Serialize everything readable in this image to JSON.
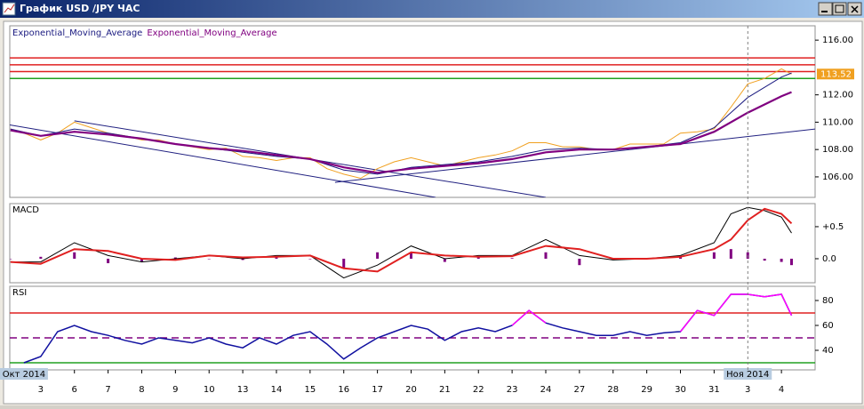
{
  "window_title": "График USD /JPY ЧАС",
  "chart_data": [
    {
      "type": "line",
      "ylim": [
        104.5,
        117.05
      ],
      "yticks": [
        {
          "value": 106,
          "label": "106.00"
        },
        {
          "value": 108,
          "label": "108.00"
        },
        {
          "value": 110,
          "label": "110.00"
        },
        {
          "value": 112,
          "label": "112.00"
        },
        {
          "value": 116,
          "label": "116.00"
        }
      ],
      "series": [
        {
          "color": "#f0a020",
          "width": 1,
          "x": [
            -0.9,
            -0.5,
            0,
            0.5,
            1,
            1.5,
            2,
            2.5,
            3,
            3.5,
            4,
            4.5,
            5,
            5.5,
            6,
            6.5,
            7,
            7.5,
            8,
            8.5,
            9,
            9.5,
            10,
            10.5,
            11,
            11.5,
            12,
            12.5,
            13,
            13.5,
            14,
            14.5,
            15,
            15.5,
            16,
            16.5,
            17,
            17.5,
            18,
            18.5,
            19,
            19.5,
            20,
            20.5,
            21,
            21.5,
            22,
            22.3
          ],
          "values": [
            109.5,
            109.2,
            108.7,
            109.2,
            110.0,
            109.6,
            109.2,
            109.0,
            108.7,
            108.7,
            108.4,
            108.2,
            108.0,
            108.1,
            107.5,
            107.4,
            107.2,
            107.4,
            107.4,
            106.6,
            106.2,
            105.9,
            106.6,
            107.1,
            107.4,
            107.1,
            106.8,
            107.1,
            107.4,
            107.6,
            107.9,
            108.5,
            108.5,
            108.2,
            108.2,
            108.0,
            108.0,
            108.4,
            108.4,
            108.4,
            109.2,
            109.3,
            109.5,
            111.1,
            112.8,
            113.2,
            113.9,
            113.52
          ]
        },
        {
          "name": "Exponential_Moving_Average",
          "color": "#1a1a80",
          "width": 1,
          "x": [
            -0.9,
            0,
            1,
            2,
            3,
            4,
            5,
            6,
            7,
            8,
            9,
            10,
            11,
            12,
            13,
            14,
            15,
            16,
            17,
            18,
            19,
            20,
            21,
            22,
            22.3
          ],
          "values": [
            109.5,
            109.0,
            109.5,
            109.2,
            108.8,
            108.4,
            108.1,
            107.8,
            107.5,
            107.3,
            106.5,
            106.2,
            106.7,
            106.9,
            107.1,
            107.5,
            108.0,
            108.1,
            108.0,
            108.2,
            108.5,
            109.6,
            111.8,
            113.3,
            113.6
          ]
        },
        {
          "name": "Exponential_Moving_Average",
          "color": "#800080",
          "width": 2.2,
          "x": [
            -0.9,
            0,
            1,
            2,
            3,
            4,
            5,
            6,
            7,
            8,
            9,
            10,
            11,
            12,
            13,
            14,
            15,
            16,
            17,
            18,
            19,
            20,
            21,
            22,
            22.3
          ],
          "values": [
            109.4,
            109.0,
            109.3,
            109.1,
            108.8,
            108.4,
            108.1,
            107.9,
            107.6,
            107.3,
            106.7,
            106.3,
            106.6,
            106.8,
            107.0,
            107.3,
            107.8,
            108.0,
            108.0,
            108.2,
            108.4,
            109.3,
            110.7,
            111.9,
            112.2
          ]
        }
      ],
      "hlines": [
        {
          "value": 114.7,
          "color": "#e02020"
        },
        {
          "value": 114.2,
          "color": "#e02020"
        },
        {
          "value": 113.7,
          "color": "#e02020"
        },
        {
          "value": 113.2,
          "color": "#20a020"
        }
      ],
      "trendlines": [
        {
          "x1": 1,
          "y1": 110.1,
          "x2": 15,
          "y2": 104.5
        },
        {
          "x1": -0.92,
          "y1": 109.8,
          "x2": 11.73,
          "y2": 104.5
        },
        {
          "x1": 8.74,
          "y1": 105.6,
          "x2": 23.0,
          "y2": 109.5
        }
      ],
      "trendline_color": "#202080",
      "last_price": 113.52,
      "last_price_color": "#f0a020"
    },
    {
      "type": "macd",
      "title": "MACD",
      "ylim": [
        -0.375,
        0.86
      ],
      "yticks": [
        {
          "value": 0,
          "label": "0.0"
        },
        {
          "value": 0.5,
          "label": "+0.5"
        }
      ],
      "x": [
        -0.9,
        0,
        1,
        2,
        3,
        4,
        5,
        6,
        7,
        8,
        9,
        10,
        11,
        12,
        13,
        14,
        15,
        16,
        17,
        18,
        19,
        20,
        20.5,
        21,
        21.5,
        22,
        22.3
      ],
      "series": [
        {
          "color": "#000000",
          "width": 1,
          "values": [
            -0.05,
            -0.05,
            0.25,
            0.05,
            -0.05,
            0.0,
            0.05,
            0.0,
            0.05,
            0.05,
            -0.3,
            -0.1,
            0.2,
            0.0,
            0.05,
            0.05,
            0.3,
            0.05,
            -0.02,
            0.0,
            0.05,
            0.25,
            0.7,
            0.8,
            0.75,
            0.65,
            0.4
          ]
        },
        {
          "color": "#e02020",
          "width": 2,
          "values": [
            -0.05,
            -0.08,
            0.15,
            0.12,
            0.0,
            -0.02,
            0.05,
            0.02,
            0.03,
            0.05,
            -0.15,
            -0.2,
            0.1,
            0.05,
            0.03,
            0.04,
            0.2,
            0.15,
            0.0,
            0.0,
            0.03,
            0.15,
            0.3,
            0.6,
            0.78,
            0.7,
            0.55
          ]
        }
      ],
      "histogram": {
        "color": "#800080",
        "values": [
          0,
          0.03,
          0.1,
          -0.07,
          -0.05,
          0.02,
          0,
          -0.02,
          0.02,
          0,
          -0.15,
          0.1,
          0.1,
          -0.05,
          0.02,
          0.01,
          0.1,
          -0.1,
          -0.02,
          0,
          0.02,
          0.1,
          0.15,
          0.1,
          -0.03,
          -0.05,
          -0.1
        ]
      }
    },
    {
      "type": "rsi",
      "title": "RSI",
      "ylim": [
        24.3,
        91.4
      ],
      "yticks": [
        40,
        60,
        80
      ],
      "xlim": [
        -0.92,
        23.0
      ],
      "xticks": [
        {
          "value": 0,
          "label": "3"
        },
        {
          "value": 1,
          "label": "6"
        },
        {
          "value": 2,
          "label": "7"
        },
        {
          "value": 3,
          "label": "8"
        },
        {
          "value": 4,
          "label": "9"
        },
        {
          "value": 5,
          "label": "10"
        },
        {
          "value": 6,
          "label": "13"
        },
        {
          "value": 7,
          "label": "14"
        },
        {
          "value": 8,
          "label": "15"
        },
        {
          "value": 9,
          "label": "16"
        },
        {
          "value": 10,
          "label": "17"
        },
        {
          "value": 11,
          "label": "20"
        },
        {
          "value": 12,
          "label": "21"
        },
        {
          "value": 13,
          "label": "22"
        },
        {
          "value": 14,
          "label": "23"
        },
        {
          "value": 15,
          "label": "24"
        },
        {
          "value": 16,
          "label": "27"
        },
        {
          "value": 17,
          "label": "28"
        },
        {
          "value": 18,
          "label": "29"
        },
        {
          "value": 19,
          "label": "30"
        },
        {
          "value": 20,
          "label": "31"
        },
        {
          "value": 21,
          "label": "3"
        },
        {
          "value": 22,
          "label": "4"
        }
      ],
      "month_labels": [
        {
          "value": -0.5,
          "label": "Окт 2014"
        },
        {
          "value": 21,
          "label": "Ноя 2014"
        }
      ],
      "x": [
        -0.5,
        0,
        0.5,
        1,
        1.5,
        2,
        2.5,
        3,
        3.5,
        4,
        4.5,
        5,
        5.5,
        6,
        6.5,
        7,
        7.5,
        8,
        8.5,
        9,
        9.5,
        10,
        10.5,
        11,
        11.5,
        12,
        12.5,
        13,
        13.5,
        14,
        14.5,
        15,
        15.5,
        16,
        16.5,
        17,
        17.5,
        18,
        18.5,
        19,
        19.5,
        20,
        20.5,
        21,
        21.5,
        22,
        22.3
      ],
      "series": [
        {
          "color": "#1010a0",
          "width": 1.5,
          "values": [
            30,
            35,
            55,
            60,
            55,
            52,
            48,
            45,
            50,
            48,
            46,
            50,
            45,
            42,
            50,
            45,
            52,
            55,
            45,
            33,
            42,
            50,
            55,
            60,
            57,
            48,
            55,
            58,
            55,
            60,
            72,
            62,
            58,
            55,
            52,
            52,
            55,
            52,
            54,
            55,
            72,
            68,
            85,
            85,
            83,
            85,
            68
          ]
        },
        {
          "color": "#ff00ff",
          "width": 1.5,
          "values": [
            null,
            null,
            null,
            null,
            null,
            null,
            null,
            null,
            null,
            null,
            null,
            null,
            null,
            null,
            null,
            null,
            null,
            null,
            null,
            null,
            null,
            null,
            null,
            null,
            null,
            null,
            null,
            null,
            null,
            60,
            72,
            62,
            null,
            null,
            null,
            null,
            null,
            null,
            null,
            55,
            72,
            68,
            85,
            85,
            83,
            85,
            68
          ]
        }
      ],
      "hlines": [
        {
          "value": 70,
          "color": "#e02020"
        },
        {
          "value": 50,
          "color": "#800080",
          "dash": true
        },
        {
          "value": 30,
          "color": "#20a020"
        }
      ]
    }
  ]
}
